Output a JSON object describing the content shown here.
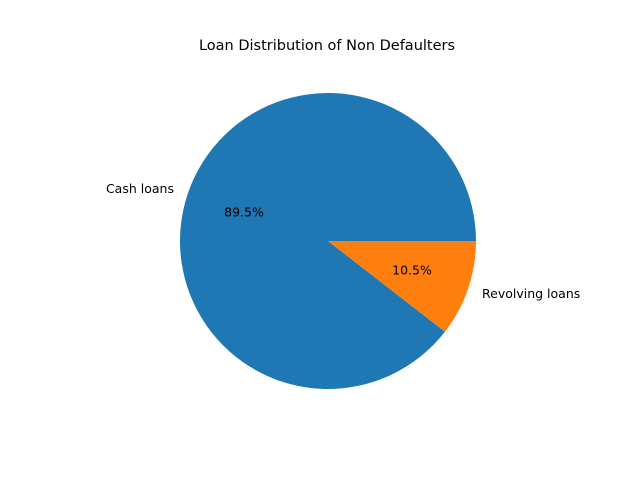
{
  "chart_data": {
    "type": "pie",
    "title": "Loan Distribution of Non Defaulters",
    "slices": [
      {
        "label": "Cash loans",
        "value": 89.5,
        "pct_label": "89.5%",
        "color": "#1f77b4"
      },
      {
        "label": "Revolving loans",
        "value": 10.5,
        "pct_label": "10.5%",
        "color": "#ff7f0e"
      }
    ],
    "start_angle_deg": 0,
    "direction": "counterclockwise"
  }
}
